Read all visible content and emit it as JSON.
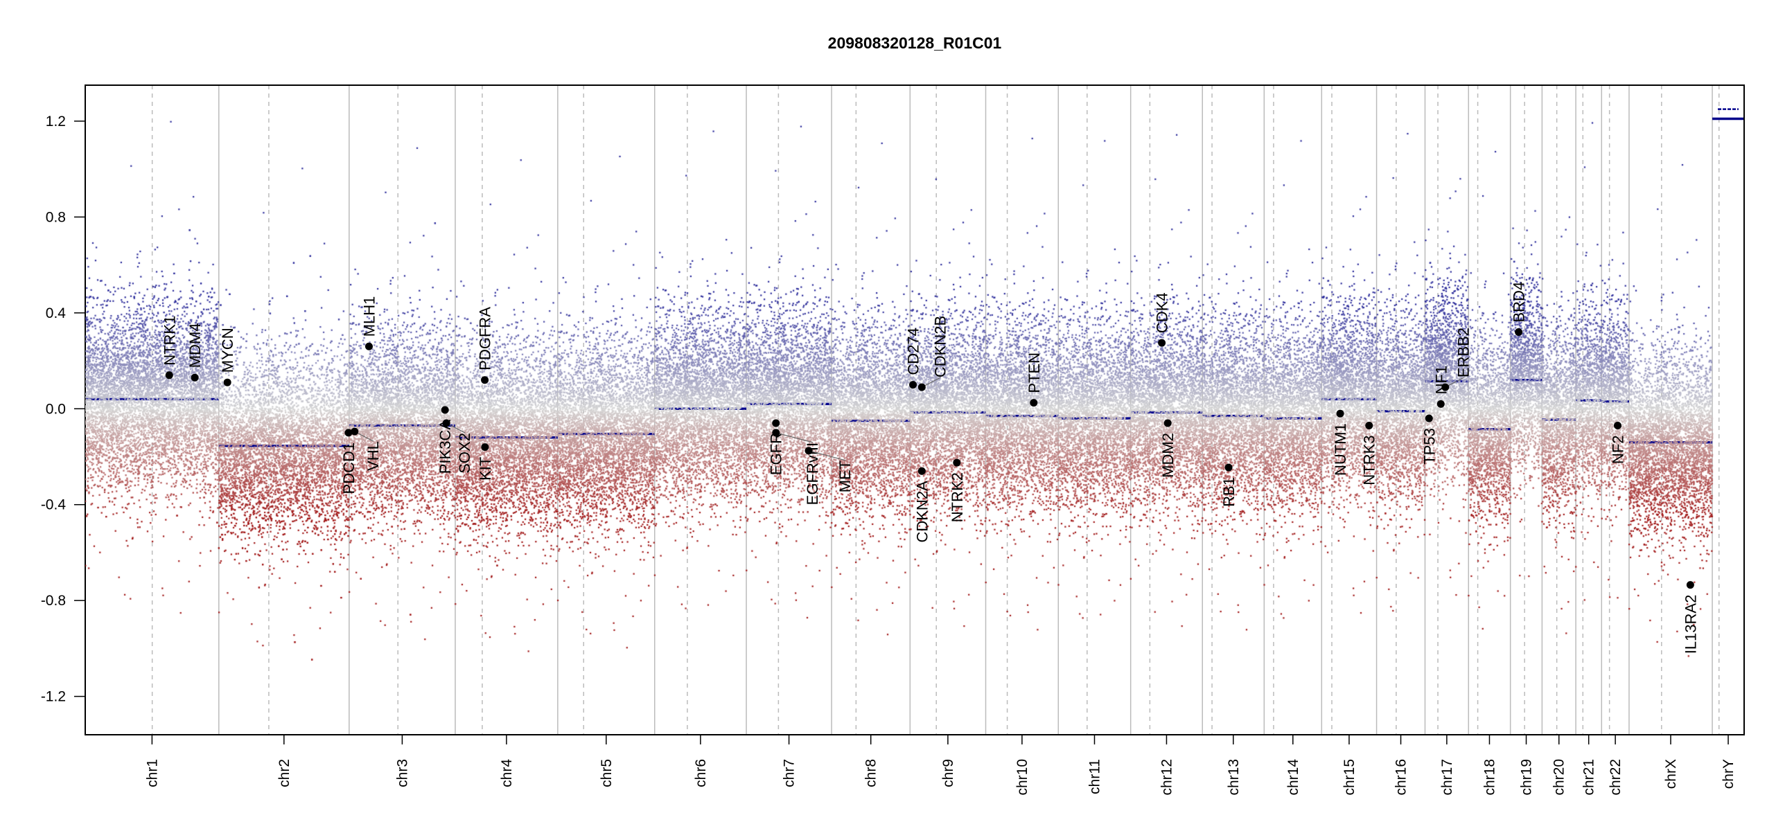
{
  "chart_data": {
    "type": "scatter",
    "title": "209808320128_R01C01",
    "xlabel": "",
    "ylabel": "",
    "ylim": [
      -1.36,
      1.35
    ],
    "yticks": [
      -1.2,
      -0.8,
      -0.4,
      0.0,
      0.4,
      0.8,
      1.2
    ],
    "ytick_labels": [
      "-1.2",
      "-0.8",
      "-0.4",
      "0.0",
      "0.4",
      "0.8",
      "1.2"
    ],
    "grid": false,
    "colors": {
      "gain": "#2a2a9a",
      "neutral": "#d4d4d4",
      "loss": "#a01515",
      "segment": "#00008b",
      "gene": "#000000"
    },
    "chromosomes": [
      {
        "name": "chr1",
        "length_mb": 249.3,
        "centromere_mb": 125.0,
        "segment": 0.04
      },
      {
        "name": "chr2",
        "length_mb": 243.2,
        "centromere_mb": 93.3,
        "segment": -0.155
      },
      {
        "name": "chr3",
        "length_mb": 198.0,
        "centromere_mb": 91.0,
        "segment": -0.07
      },
      {
        "name": "chr4",
        "length_mb": 191.2,
        "centromere_mb": 50.4,
        "segment": -0.12
      },
      {
        "name": "chr5",
        "length_mb": 180.9,
        "centromere_mb": 48.4,
        "segment": -0.105
      },
      {
        "name": "chr6",
        "length_mb": 171.1,
        "centromere_mb": 61.0,
        "segment": 0.0
      },
      {
        "name": "chr7",
        "length_mb": 159.1,
        "centromere_mb": 59.9,
        "segment": 0.02
      },
      {
        "name": "chr8",
        "length_mb": 146.4,
        "centromere_mb": 45.6,
        "segment": -0.05
      },
      {
        "name": "chr9",
        "length_mb": 141.2,
        "centromere_mb": 49.0,
        "segment": -0.015
      },
      {
        "name": "chr10",
        "length_mb": 135.5,
        "centromere_mb": 40.2,
        "segment": -0.03
      },
      {
        "name": "chr11",
        "length_mb": 135.0,
        "centromere_mb": 53.7,
        "segment": -0.04
      },
      {
        "name": "chr12",
        "length_mb": 133.9,
        "centromere_mb": 35.8,
        "segment": -0.015
      },
      {
        "name": "chr13",
        "length_mb": 115.2,
        "centromere_mb": 17.9,
        "segment": -0.03
      },
      {
        "name": "chr14",
        "length_mb": 107.3,
        "centromere_mb": 17.6,
        "segment": -0.04
      },
      {
        "name": "chr15",
        "length_mb": 102.5,
        "centromere_mb": 19.0,
        "segment": 0.04
      },
      {
        "name": "chr16",
        "length_mb": 90.4,
        "centromere_mb": 36.6,
        "segment": -0.01
      },
      {
        "name": "chr17",
        "length_mb": 81.2,
        "centromere_mb": 24.0,
        "segment": 0.115
      },
      {
        "name": "chr18",
        "length_mb": 78.1,
        "centromere_mb": 17.2,
        "segment": -0.085
      },
      {
        "name": "chr19",
        "length_mb": 59.1,
        "centromere_mb": 26.5,
        "segment": 0.12
      },
      {
        "name": "chr20",
        "length_mb": 63.0,
        "centromere_mb": 27.5,
        "segment": -0.045
      },
      {
        "name": "chr21",
        "length_mb": 48.1,
        "centromere_mb": 13.2,
        "segment": 0.035
      },
      {
        "name": "chr22",
        "length_mb": 51.3,
        "centromere_mb": 14.7,
        "segment": 0.03
      },
      {
        "name": "chrX",
        "length_mb": 155.3,
        "centromere_mb": 60.6,
        "segment": -0.14
      },
      {
        "name": "chrY",
        "length_mb": 59.4,
        "centromere_mb": 12.5,
        "segment": 1.21,
        "segment2": 1.25
      }
    ],
    "genes": [
      {
        "name": "NTRK1",
        "chr": "chr1",
        "pos_mb": 156.8,
        "value": 0.14
      },
      {
        "name": "MDM4",
        "chr": "chr1",
        "pos_mb": 204.5,
        "value": 0.13
      },
      {
        "name": "MYCN",
        "chr": "chr2",
        "pos_mb": 16.0,
        "value": 0.11
      },
      {
        "name": "PDCD1",
        "chr": "chr2",
        "pos_mb": 242.0,
        "value": -0.1
      },
      {
        "name": "VHL",
        "chr": "chr3",
        "pos_mb": 10.2,
        "value": -0.095
      },
      {
        "name": "MLH1",
        "chr": "chr3",
        "pos_mb": 37.0,
        "value": 0.26
      },
      {
        "name": "SOX2",
        "chr": "chr3",
        "pos_mb": 181.4,
        "value": -0.06
      },
      {
        "name": "PIK3CA",
        "chr": "chr3",
        "pos_mb": 178.9,
        "value": -0.005
      },
      {
        "name": "PDGFRA",
        "chr": "chr4",
        "pos_mb": 55.1,
        "value": 0.12
      },
      {
        "name": "KIT",
        "chr": "chr4",
        "pos_mb": 55.5,
        "value": -0.16
      },
      {
        "name": "EGFR",
        "chr": "chr7",
        "pos_mb": 55.2,
        "value": -0.06
      },
      {
        "name": "EGFRvIII",
        "chr": "chr7",
        "pos_mb": 55.3,
        "value": -0.1
      },
      {
        "name": "MET",
        "chr": "chr7",
        "pos_mb": 116.4,
        "value": -0.175
      },
      {
        "name": "CD274",
        "chr": "chr9",
        "pos_mb": 5.5,
        "value": 0.1
      },
      {
        "name": "CDKN2B",
        "chr": "chr9",
        "pos_mb": 22.0,
        "value": 0.09
      },
      {
        "name": "CDKN2A",
        "chr": "chr9",
        "pos_mb": 21.97,
        "value": -0.26
      },
      {
        "name": "NTRK2",
        "chr": "chr9",
        "pos_mb": 87.3,
        "value": -0.225
      },
      {
        "name": "PTEN",
        "chr": "chr10",
        "pos_mb": 89.6,
        "value": 0.025
      },
      {
        "name": "CDK4",
        "chr": "chr12",
        "pos_mb": 58.1,
        "value": 0.275
      },
      {
        "name": "MDM2",
        "chr": "chr12",
        "pos_mb": 69.2,
        "value": -0.06
      },
      {
        "name": "RB1",
        "chr": "chr13",
        "pos_mb": 48.9,
        "value": -0.245
      },
      {
        "name": "NUTM1",
        "chr": "chr15",
        "pos_mb": 34.6,
        "value": -0.02
      },
      {
        "name": "NTRK3",
        "chr": "chr15",
        "pos_mb": 88.5,
        "value": -0.07
      },
      {
        "name": "TP53",
        "chr": "chr17",
        "pos_mb": 7.5,
        "value": -0.04
      },
      {
        "name": "NF1",
        "chr": "chr17",
        "pos_mb": 29.5,
        "value": 0.02
      },
      {
        "name": "ERBB2",
        "chr": "chr17",
        "pos_mb": 37.8,
        "value": 0.09
      },
      {
        "name": "BRD4",
        "chr": "chr19",
        "pos_mb": 15.4,
        "value": 0.32
      },
      {
        "name": "NF2",
        "chr": "chr22",
        "pos_mb": 30.0,
        "value": -0.07
      },
      {
        "name": "IL13RA2",
        "chr": "chrX",
        "pos_mb": 114.3,
        "value": -0.735
      }
    ]
  }
}
